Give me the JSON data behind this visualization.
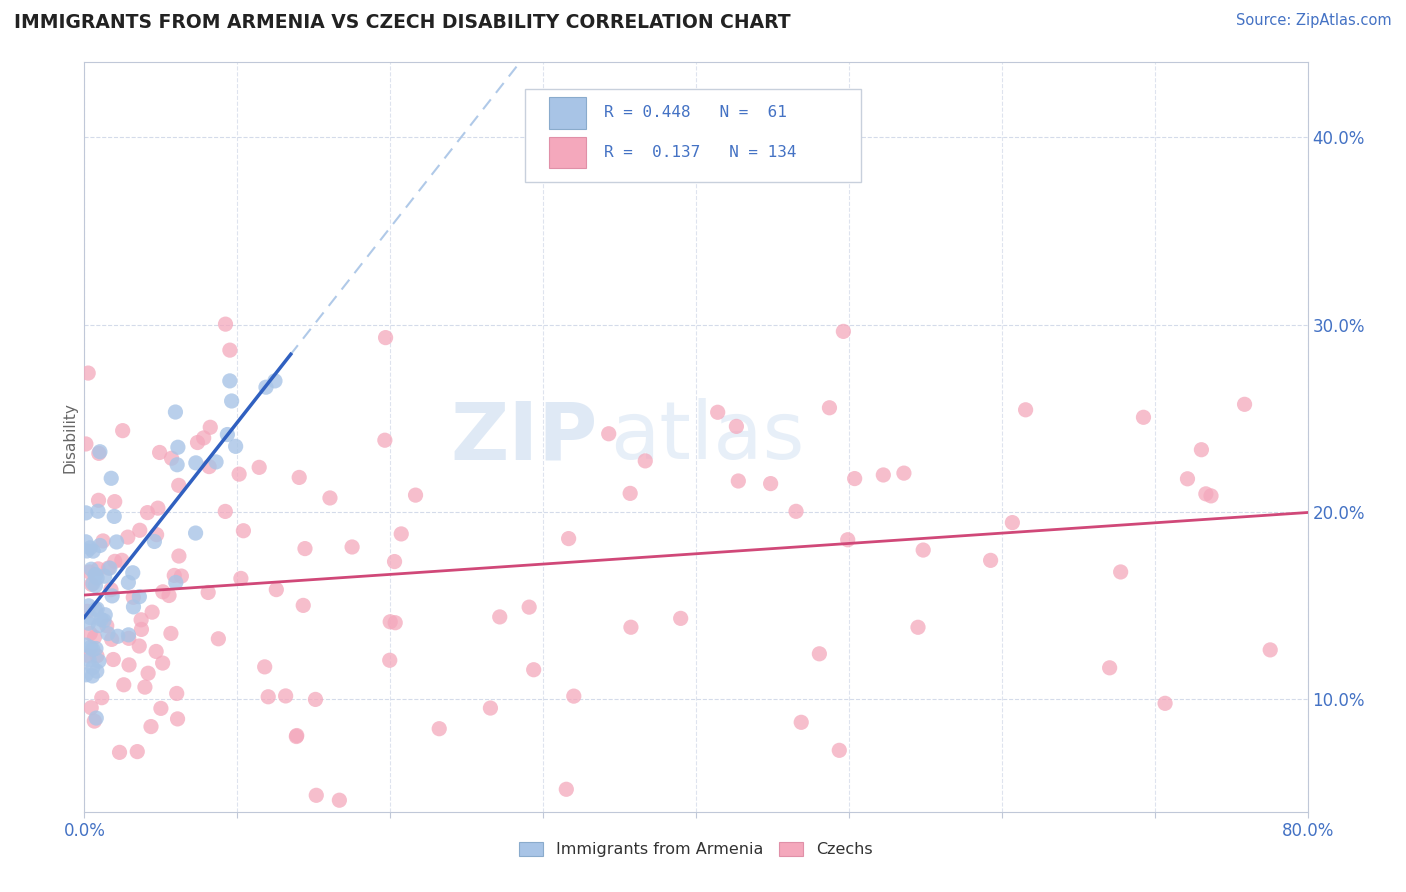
{
  "title": "IMMIGRANTS FROM ARMENIA VS CZECH DISABILITY CORRELATION CHART",
  "source_text": "Source: ZipAtlas.com",
  "ylabel": "Disability",
  "xlim": [
    0.0,
    0.8
  ],
  "ylim": [
    0.04,
    0.44
  ],
  "color_armenia": "#a8c4e6",
  "color_czech": "#f4a8bc",
  "color_line_armenia": "#3060c0",
  "color_line_czech": "#d04878",
  "color_dash": "#a8c4e6",
  "color_legend_text_rn": "#4472c4",
  "color_legend_text_label": "#333333",
  "background_color": "#ffffff",
  "watermark_zip": "ZIP",
  "watermark_atlas": "atlas",
  "grid_color": "#d0d8e8",
  "tick_color": "#4472c4",
  "spine_color": "#c0c8d8"
}
